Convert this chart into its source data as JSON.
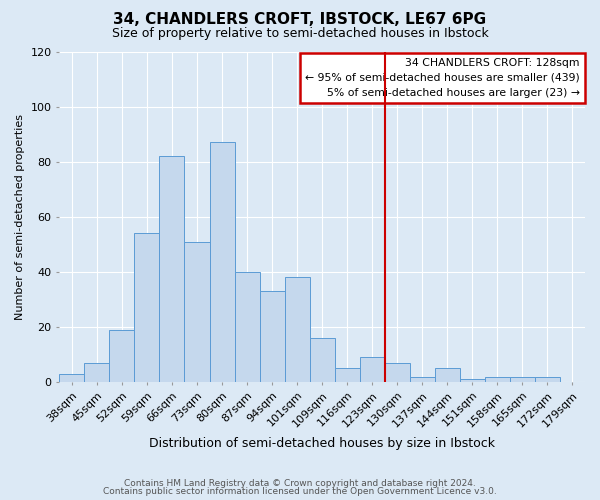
{
  "title": "34, CHANDLERS CROFT, IBSTOCK, LE67 6PG",
  "subtitle": "Size of property relative to semi-detached houses in Ibstock",
  "xlabel": "Distribution of semi-detached houses by size in Ibstock",
  "ylabel": "Number of semi-detached properties",
  "footer_line1": "Contains HM Land Registry data © Crown copyright and database right 2024.",
  "footer_line2": "Contains public sector information licensed under the Open Government Licence v3.0.",
  "bar_labels": [
    "38sqm",
    "45sqm",
    "52sqm",
    "59sqm",
    "66sqm",
    "73sqm",
    "80sqm",
    "87sqm",
    "94sqm",
    "101sqm",
    "109sqm",
    "116sqm",
    "123sqm",
    "130sqm",
    "137sqm",
    "144sqm",
    "151sqm",
    "158sqm",
    "165sqm",
    "172sqm",
    "179sqm"
  ],
  "bar_values": [
    3,
    7,
    19,
    54,
    82,
    51,
    87,
    40,
    33,
    38,
    16,
    5,
    9,
    7,
    2,
    5,
    1,
    2,
    2,
    2,
    0
  ],
  "bar_color": "#c5d8ed",
  "bar_edge_color": "#5b9bd5",
  "grid_color": "#ffffff",
  "bg_color": "#dce9f5",
  "ylim": [
    0,
    120
  ],
  "yticks": [
    0,
    20,
    40,
    60,
    80,
    100,
    120
  ],
  "vline_color": "#cc0000",
  "annotation_title": "34 CHANDLERS CROFT: 128sqm",
  "annotation_line2": "← 95% of semi-detached houses are smaller (439)",
  "annotation_line3": "5% of semi-detached houses are larger (23) →",
  "annotation_box_color": "#cc0000",
  "annotation_bg": "#ffffff",
  "title_fontsize": 11,
  "subtitle_fontsize": 9,
  "xlabel_fontsize": 9,
  "ylabel_fontsize": 8,
  "tick_fontsize": 8,
  "footer_fontsize": 6.5
}
